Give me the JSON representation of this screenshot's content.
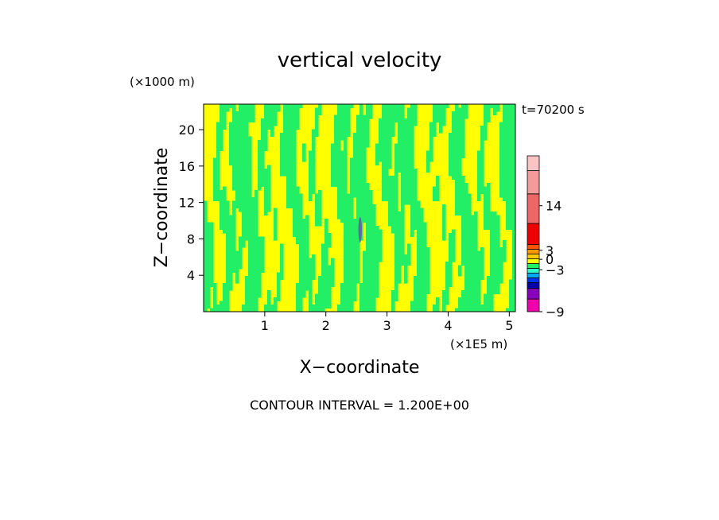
{
  "chart_data": {
    "type": "heatmap",
    "title": "vertical velocity",
    "xlabel": "X−coordinate",
    "ylabel": "Z−coordinate",
    "x_unit": "(×1E5 m)",
    "y_unit": "(×1000 m)",
    "time_label": "t=70200 s",
    "footnote": "CONTOUR INTERVAL = 1.200E+00",
    "xlim": [
      0,
      5.1
    ],
    "ylim": [
      0,
      22.8
    ],
    "x_ticks": [
      {
        "value": 1,
        "label": "1"
      },
      {
        "value": 2,
        "label": "2"
      },
      {
        "value": 3,
        "label": "3"
      },
      {
        "value": 4,
        "label": "4"
      },
      {
        "value": 5,
        "label": "5"
      }
    ],
    "y_ticks": [
      {
        "value": 4,
        "label": "4"
      },
      {
        "value": 8,
        "label": "8"
      },
      {
        "value": 12,
        "label": "12"
      },
      {
        "value": 16,
        "label": "16"
      },
      {
        "value": 20,
        "label": "20"
      }
    ],
    "dominant_colors": {
      "positive": "#ffff00",
      "negative": "#22ee66"
    },
    "intense_cell": {
      "x": 2.56,
      "z": 9.0,
      "color": "#6666aa"
    },
    "colorbar": {
      "bands": [
        {
          "color": "#ee00aa",
          "weight": 1.2
        },
        {
          "color": "#8800bb",
          "weight": 1.0
        },
        {
          "color": "#0000aa",
          "weight": 0.55
        },
        {
          "color": "#0033ee",
          "weight": 0.45
        },
        {
          "color": "#00aaff",
          "weight": 0.45
        },
        {
          "color": "#33ffcc",
          "weight": 0.45
        },
        {
          "color": "#22ee66",
          "weight": 0.45
        },
        {
          "color": "#ffff00",
          "weight": 0.45
        },
        {
          "color": "#ffcc00",
          "weight": 0.45
        },
        {
          "color": "#ff9900",
          "weight": 0.45
        },
        {
          "color": "#ff5500",
          "weight": 0.45
        },
        {
          "color": "#ee0000",
          "weight": 2.0
        },
        {
          "color": "#ee6666",
          "weight": 2.8
        },
        {
          "color": "#f49a9a",
          "weight": 2.2
        },
        {
          "color": "#fbc4c4",
          "weight": 1.4
        }
      ],
      "labels": [
        {
          "text": "14",
          "band": 12.6
        },
        {
          "text": "3",
          "band": 9.8
        },
        {
          "text": "0",
          "band": 7.9
        },
        {
          "text": "−3",
          "band": 5.7
        },
        {
          "text": "−9",
          "band": 0
        }
      ]
    }
  }
}
